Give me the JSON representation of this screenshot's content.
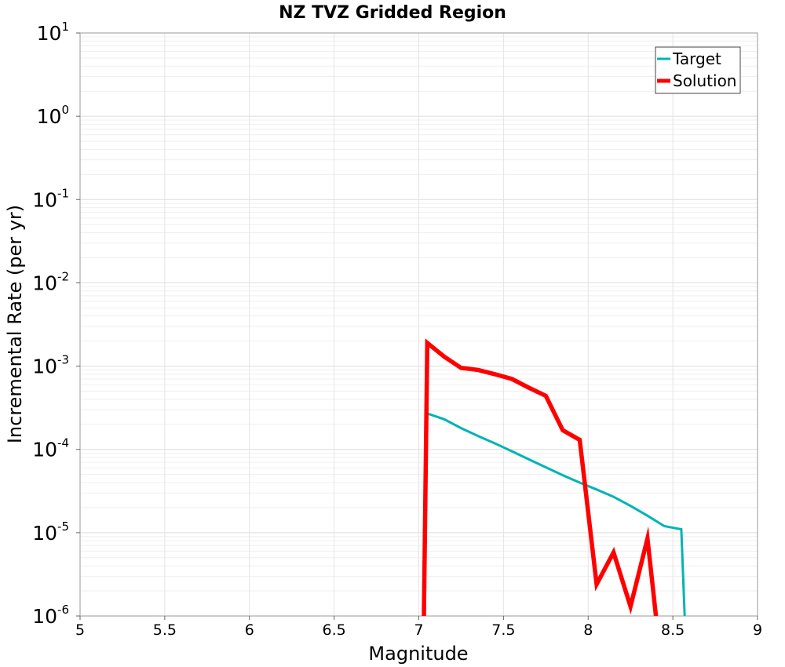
{
  "chart_data": {
    "type": "line",
    "title": "NZ TVZ Gridded Region",
    "xlabel": "Magnitude",
    "ylabel": "Incremental Rate (per yr)",
    "xlim": [
      5,
      9
    ],
    "ylim": [
      1e-06,
      10
    ],
    "yscale": "log",
    "grid": true,
    "legend_position": "top-right",
    "x_ticks": [
      "5",
      "5.5",
      "6",
      "6.5",
      "7",
      "7.5",
      "8",
      "8.5",
      "9"
    ],
    "y_ticks": [
      {
        "base": "10",
        "exp": "-6"
      },
      {
        "base": "10",
        "exp": "-5"
      },
      {
        "base": "10",
        "exp": "-4"
      },
      {
        "base": "10",
        "exp": "-3"
      },
      {
        "base": "10",
        "exp": "-2"
      },
      {
        "base": "10",
        "exp": "-1"
      },
      {
        "base": "10",
        "exp": "0"
      },
      {
        "base": "10",
        "exp": "1"
      }
    ],
    "series": [
      {
        "name": "Target",
        "color": "#00b4b4",
        "x": [
          7.05,
          7.15,
          7.25,
          7.35,
          7.45,
          7.55,
          7.65,
          7.75,
          7.85,
          7.95,
          8.05,
          8.15,
          8.25,
          8.35,
          8.45,
          8.55,
          8.57
        ],
        "y": [
          0.00027,
          0.00023,
          0.00018,
          0.000145,
          0.000118,
          9.5e-05,
          7.6e-05,
          6.1e-05,
          4.9e-05,
          4e-05,
          3.3e-05,
          2.7e-05,
          2.1e-05,
          1.6e-05,
          1.2e-05,
          1.1e-05,
          1e-06
        ]
      },
      {
        "name": "Solution",
        "color": "#ff0000",
        "x": [
          7.03,
          7.05,
          7.15,
          7.25,
          7.35,
          7.45,
          7.55,
          7.65,
          7.75,
          7.85,
          7.95,
          8.05,
          8.15,
          8.25,
          8.35,
          8.4
        ],
        "y": [
          1e-06,
          0.0019,
          0.0013,
          0.00095,
          0.0009,
          0.0008,
          0.0007,
          0.00055,
          0.00044,
          0.00017,
          0.00013,
          2.4e-06,
          5.8e-06,
          1.3e-06,
          8.5e-06,
          1e-06
        ]
      }
    ]
  }
}
